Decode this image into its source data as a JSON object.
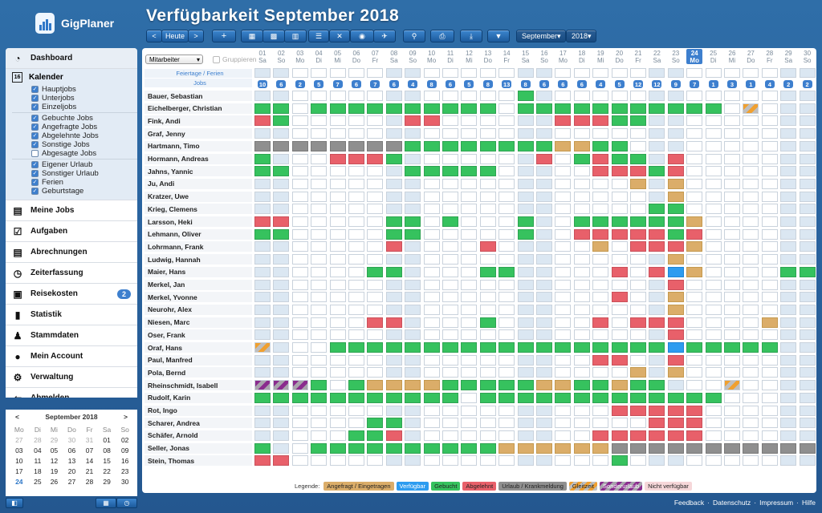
{
  "app": {
    "name": "GigPlaner"
  },
  "page_title": "Verfügbarkeit September 2018",
  "toolbar": {
    "prev": "<",
    "today": "Heute",
    "next": ">",
    "add": "+",
    "month_select": "September",
    "year_select": "2018"
  },
  "sidebar": {
    "items": [
      {
        "label": "Dashboard",
        "icon": "gauge-icon"
      },
      {
        "label": "Meine Jobs",
        "icon": "clipboard-icon"
      },
      {
        "label": "Aufgaben",
        "icon": "checkbox-icon"
      },
      {
        "label": "Abrechnungen",
        "icon": "document-icon"
      },
      {
        "label": "Zeiterfassung",
        "icon": "stopwatch-icon"
      },
      {
        "label": "Reisekosten",
        "icon": "suitcase-icon",
        "badge": "2"
      },
      {
        "label": "Statistik",
        "icon": "bar-chart-icon"
      },
      {
        "label": "Stammdaten",
        "icon": "people-icon"
      },
      {
        "label": "Mein Account",
        "icon": "user-icon"
      },
      {
        "label": "Verwaltung",
        "icon": "gears-icon"
      },
      {
        "label": "Abmelden",
        "icon": "logout-icon"
      }
    ],
    "kalender": {
      "label": "Kalender",
      "icon_text": "16",
      "groups": [
        [
          {
            "label": "Hauptjobs",
            "checked": true
          },
          {
            "label": "Unterjobs",
            "checked": true
          },
          {
            "label": "Einzeljobs",
            "checked": true
          }
        ],
        [
          {
            "label": "Gebuchte Jobs",
            "checked": true
          },
          {
            "label": "Angefragte Jobs",
            "checked": true
          },
          {
            "label": "Abgelehnte Jobs",
            "checked": true
          },
          {
            "label": "Sonstige Jobs",
            "checked": true
          },
          {
            "label": "Abgesagte Jobs",
            "checked": false
          }
        ],
        [
          {
            "label": "Eigener Urlaub",
            "checked": true
          },
          {
            "label": "Sonstiger Urlaub",
            "checked": true
          },
          {
            "label": "Ferien",
            "checked": true
          },
          {
            "label": "Geburtstage",
            "checked": true
          }
        ]
      ]
    }
  },
  "mini_calendar": {
    "title": "September 2018",
    "prev": "<",
    "next": ">",
    "weekdays": [
      "Mo",
      "Di",
      "Mi",
      "Do",
      "Fr",
      "Sa",
      "So"
    ],
    "weeks": [
      [
        "27",
        "28",
        "29",
        "30",
        "31",
        "01",
        "02"
      ],
      [
        "03",
        "04",
        "05",
        "06",
        "07",
        "08",
        "09"
      ],
      [
        "10",
        "11",
        "12",
        "13",
        "14",
        "15",
        "16"
      ],
      [
        "17",
        "18",
        "19",
        "20",
        "21",
        "22",
        "23"
      ],
      [
        "24",
        "25",
        "26",
        "27",
        "28",
        "29",
        "30"
      ]
    ]
  },
  "grid": {
    "filter_select": "Mitarbeiter",
    "group_label": "Gruppieren",
    "holiday_label": "Feiertage / Ferien",
    "jobs_label": "Jobs",
    "days": [
      {
        "d": "01",
        "w": "Sa"
      },
      {
        "d": "02",
        "w": "So"
      },
      {
        "d": "03",
        "w": "Mo"
      },
      {
        "d": "04",
        "w": "Di"
      },
      {
        "d": "05",
        "w": "Mi"
      },
      {
        "d": "06",
        "w": "Do"
      },
      {
        "d": "07",
        "w": "Fr"
      },
      {
        "d": "08",
        "w": "Sa"
      },
      {
        "d": "09",
        "w": "So"
      },
      {
        "d": "10",
        "w": "Mo"
      },
      {
        "d": "11",
        "w": "Di"
      },
      {
        "d": "12",
        "w": "Mi"
      },
      {
        "d": "13",
        "w": "Do"
      },
      {
        "d": "14",
        "w": "Fr"
      },
      {
        "d": "15",
        "w": "Sa"
      },
      {
        "d": "16",
        "w": "So"
      },
      {
        "d": "17",
        "w": "Mo"
      },
      {
        "d": "18",
        "w": "Di"
      },
      {
        "d": "19",
        "w": "Mi"
      },
      {
        "d": "20",
        "w": "Do"
      },
      {
        "d": "21",
        "w": "Fr"
      },
      {
        "d": "22",
        "w": "Sa"
      },
      {
        "d": "23",
        "w": "So"
      },
      {
        "d": "24",
        "w": "Mo"
      },
      {
        "d": "25",
        "w": "Di"
      },
      {
        "d": "26",
        "w": "Mi"
      },
      {
        "d": "27",
        "w": "Do"
      },
      {
        "d": "28",
        "w": "Fr"
      },
      {
        "d": "29",
        "w": "Sa"
      },
      {
        "d": "30",
        "w": "So"
      }
    ],
    "today_index": 23,
    "job_counts": [
      "10",
      "6",
      "2",
      "5",
      "7",
      "6",
      "7",
      "6",
      "4",
      "8",
      "6",
      "5",
      "8",
      "13",
      "8",
      "6",
      "6",
      "6",
      "4",
      "5",
      "12",
      "12",
      "9",
      "7",
      "1",
      "3",
      "1",
      "4",
      "2",
      "2"
    ],
    "rows": [
      {
        "name": "Bauer, Sebastian",
        "cells": "..............g..............."
      },
      {
        "name": "Eichelberger, Christian",
        "cells": "gg.gggggggggg.ggggggggggg.y...."
      },
      {
        "name": "Fink, Andi",
        "cells": "rg......rr......rrrgg..........."
      },
      {
        "name": "Graf, Jenny",
        "cells": ".............................."
      },
      {
        "name": "Hartmann, Timo",
        "cells": "zzzzzzzzggggggggoogg..........."
      },
      {
        "name": "Hormann, Andreas",
        "cells": "g...rrrg.......r.grgg.r........"
      },
      {
        "name": "Jahns, Yannic",
        "cells": "gg......ggggg.....rrrgr........"
      },
      {
        "name": "Ju, Andi",
        "cells": "....................o.o......."
      },
      {
        "name": "Kratzer, Uwe",
        "cells": "......................o......."
      },
      {
        "name": "Krieg, Clemens",
        "cells": ".....................gg......."
      },
      {
        "name": "Larsson, Heki",
        "cells": "rr.....gg.g...g..ggggggo......."
      },
      {
        "name": "Lehmann, Oliver",
        "cells": "gg.....gg.....g..rrrrrgr......."
      },
      {
        "name": "Lohrmann, Frank",
        "cells": ".......r....r.....o.rrro......."
      },
      {
        "name": "Ludwig, Hannah",
        "cells": "......................o......."
      },
      {
        "name": "Maier, Hans",
        "cells": "......gg....gg.....r.rbo....ggg"
      },
      {
        "name": "Merkel, Jan",
        "cells": "......................r......."
      },
      {
        "name": "Merkel, Yvonne",
        "cells": "...................r..o......."
      },
      {
        "name": "Neurohr, Alex",
        "cells": "......................o......."
      },
      {
        "name": "Niesen, Marc",
        "cells": "......rr....g.....r.rrr....o..."
      },
      {
        "name": "Oser, Frank",
        "cells": "......................r......."
      },
      {
        "name": "Oraf, Hans",
        "cells": "y...ggggggggggggggggggbggggg..."
      },
      {
        "name": "Paul, Manfred",
        "cells": "..................rr..r......."
      },
      {
        "name": "Pola, Bernd",
        "cells": "....................o.o......."
      },
      {
        "name": "Rheinschmidt, Isabell",
        "cells": "pppg.goooogggggooggogg...y...."
      },
      {
        "name": "Rudolf, Karin",
        "cells": "ggggggggggg.ggggggggggggg......"
      },
      {
        "name": "Rot, Ingo",
        "cells": "...................rrrrr......."
      },
      {
        "name": "Scharer, Andrea",
        "cells": "......gg.............rrr......."
      },
      {
        "name": "Schäfer, Arnold",
        "cells": ".....ggr..........rrrrrr......."
      },
      {
        "name": "Seller, Jonas",
        "cells": "g..ggggggggggoooooozzzzzzzzzzzz"
      },
      {
        "name": "Stein, Thomas",
        "cells": "rr.................g..........."
      }
    ]
  },
  "legend": {
    "title": "Legende:",
    "items": [
      {
        "label": "Angefragt / Eingetragen",
        "color": "#dbad69"
      },
      {
        "label": "Verfügbar",
        "color": "#2d9cf0"
      },
      {
        "label": "Gebucht",
        "color": "#36c25e"
      },
      {
        "label": "Abgelehnt",
        "color": "#e8606a"
      },
      {
        "label": "Urlaub / Krankmeldung",
        "color": "#8f8f8f"
      },
      {
        "label": "Gleitzeit",
        "color": "#f0a030"
      },
      {
        "label": "Sonderurlaub",
        "color": "#8a2c8e"
      },
      {
        "label": "Nicht verfügbar",
        "color": "#f6d7d9"
      }
    ]
  },
  "footer": {
    "links": [
      "Feedback",
      "Datenschutz",
      "Impressum",
      "Hilfe"
    ],
    "sep": "·"
  }
}
